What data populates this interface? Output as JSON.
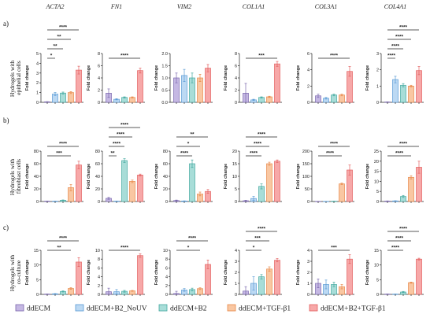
{
  "columns": [
    "ACTA2",
    "FN1",
    "VIM2",
    "COL1A1",
    "COL3A1",
    "COL4A1"
  ],
  "rows": [
    {
      "panel": "a)",
      "label": [
        "Hydrogels with",
        "epithelial cells"
      ]
    },
    {
      "panel": "b)",
      "label": [
        "Hydrogels with",
        "fibroblast cells"
      ]
    },
    {
      "panel": "c)",
      "label": [
        "Hydrogels with",
        "co-culture"
      ]
    }
  ],
  "legend": {
    "placement": "bottom",
    "items": [
      {
        "label": "ddECM",
        "fill": "#c5b8e3",
        "stroke": "#7b68ae"
      },
      {
        "label": "ddECM+B2_NoUV",
        "fill": "#bcd9f3",
        "stroke": "#5a9bd5"
      },
      {
        "label": "ddECM+B2",
        "fill": "#a8ddd8",
        "stroke": "#44a9a0"
      },
      {
        "label": "ddECM+TGF-β1",
        "fill": "#f9c7a2",
        "stroke": "#e8894a"
      },
      {
        "label": "ddECM+B2+TGF-β1",
        "fill": "#f7a8a8",
        "stroke": "#e36060"
      }
    ]
  },
  "chart_data": [
    {
      "type": "bar",
      "ylabel": "Fold change",
      "grid": false,
      "ylim": [
        0,
        5
      ],
      "yticks": [
        "0",
        "1",
        "2",
        "3",
        "4",
        "5"
      ],
      "values": [
        0.05,
        0.85,
        0.95,
        1.0,
        3.3
      ],
      "errors": [
        0.02,
        0.15,
        0.1,
        0.1,
        0.4
      ],
      "significance": [
        {
          "from": 0,
          "to": 4,
          "label": "****"
        },
        {
          "from": 0,
          "to": 3,
          "label": "**"
        },
        {
          "from": 0,
          "to": 2,
          "label": "**"
        },
        {
          "from": 0,
          "to": 1,
          "label": "*"
        }
      ]
    },
    {
      "type": "bar",
      "ylabel": "Fold change",
      "grid": false,
      "ylim": [
        0,
        8
      ],
      "yticks": [
        "0",
        "2",
        "4",
        "6",
        "8"
      ],
      "values": [
        1.5,
        0.5,
        0.8,
        0.8,
        5.2
      ],
      "errors": [
        0.7,
        0.1,
        0.1,
        0.1,
        0.4
      ],
      "significance": [
        {
          "from": 0,
          "to": 4,
          "label": "****"
        }
      ]
    },
    {
      "type": "bar",
      "ylabel": "Fold change",
      "grid": false,
      "ylim": [
        0,
        2
      ],
      "yticks": [
        "0.0",
        "0.5",
        "1.0",
        "1.5",
        "2.0"
      ],
      "values": [
        1.0,
        1.1,
        1.0,
        1.0,
        1.4
      ],
      "errors": [
        0.2,
        0.25,
        0.2,
        0.15,
        0.15
      ],
      "significance": []
    },
    {
      "type": "bar",
      "ylabel": "Fold change",
      "grid": false,
      "ylim": [
        0,
        8
      ],
      "yticks": [
        "0",
        "2",
        "4",
        "6",
        "8"
      ],
      "values": [
        1.5,
        0.4,
        0.8,
        0.9,
        6.3
      ],
      "errors": [
        1.6,
        0.1,
        0.1,
        0.1,
        0.4
      ],
      "significance": [
        {
          "from": 0,
          "to": 4,
          "label": "***"
        }
      ]
    },
    {
      "type": "bar",
      "ylabel": "Fold change",
      "grid": false,
      "ylim": [
        0,
        6
      ],
      "yticks": [
        "0",
        "2",
        "4",
        "6"
      ],
      "values": [
        0.8,
        0.5,
        0.9,
        0.9,
        3.8
      ],
      "errors": [
        0.2,
        0.1,
        0.1,
        0.1,
        0.6
      ],
      "significance": [
        {
          "from": 0,
          "to": 4,
          "label": "****"
        }
      ]
    },
    {
      "type": "bar",
      "ylabel": "Fold change",
      "grid": false,
      "ylim": [
        0,
        3
      ],
      "yticks": [
        "0",
        "1",
        "2",
        "3"
      ],
      "values": [
        0.02,
        1.4,
        1.05,
        1.0,
        1.95
      ],
      "errors": [
        0.01,
        0.2,
        0.1,
        0.05,
        0.25
      ],
      "significance": [
        {
          "from": 0,
          "to": 4,
          "label": "****"
        },
        {
          "from": 0,
          "to": 3,
          "label": "****"
        },
        {
          "from": 0,
          "to": 2,
          "label": "****"
        },
        {
          "from": 0,
          "to": 1,
          "label": "****"
        }
      ]
    },
    {
      "type": "bar",
      "ylabel": "Fold change",
      "grid": false,
      "ylim": [
        0,
        80
      ],
      "yticks": [
        "0",
        "20",
        "40",
        "60",
        "80"
      ],
      "values": [
        0.5,
        0.5,
        2,
        22,
        58
      ],
      "errors": [
        0.2,
        0.2,
        0.5,
        5,
        6
      ],
      "significance": [
        {
          "from": 0,
          "to": 4,
          "label": "****"
        },
        {
          "from": 0,
          "to": 3,
          "label": "***"
        }
      ]
    },
    {
      "type": "bar",
      "ylabel": "Fold change",
      "grid": false,
      "ylim": [
        0,
        80
      ],
      "yticks": [
        "0",
        "20",
        "40",
        "60",
        "80"
      ],
      "values": [
        5,
        0.5,
        65,
        32,
        42
      ],
      "errors": [
        1.5,
        0.2,
        3,
        2,
        1.5
      ],
      "significance": [
        {
          "from": 0,
          "to": 4,
          "label": "****"
        },
        {
          "from": 0,
          "to": 3,
          "label": "****"
        },
        {
          "from": 0,
          "to": 2,
          "label": "****"
        },
        {
          "from": 0,
          "to": 1,
          "label": "**"
        }
      ]
    },
    {
      "type": "bar",
      "ylabel": "Fold change",
      "grid": false,
      "ylim": [
        0,
        80
      ],
      "yticks": [
        "0",
        "20",
        "40",
        "60",
        "80"
      ],
      "values": [
        1.5,
        0.8,
        60,
        12,
        16
      ],
      "errors": [
        0.8,
        0.3,
        6,
        3,
        3
      ],
      "significance": [
        {
          "from": 0,
          "to": 4,
          "label": "**"
        },
        {
          "from": 0,
          "to": 3,
          "label": "*"
        },
        {
          "from": 0,
          "to": 2,
          "label": "****"
        }
      ]
    },
    {
      "type": "bar",
      "ylabel": "Fold change",
      "grid": false,
      "ylim": [
        0,
        20
      ],
      "yticks": [
        "0",
        "5",
        "10",
        "15",
        "20"
      ],
      "values": [
        0.3,
        1.2,
        6,
        15,
        16
      ],
      "errors": [
        0.2,
        0.8,
        1,
        0.6,
        0.5
      ],
      "significance": [
        {
          "from": 0,
          "to": 4,
          "label": "****"
        },
        {
          "from": 0,
          "to": 3,
          "label": "****"
        },
        {
          "from": 0,
          "to": 2,
          "label": "****"
        }
      ]
    },
    {
      "type": "bar",
      "ylabel": "Fold change",
      "grid": false,
      "ylim": [
        0,
        200
      ],
      "yticks": [
        "0",
        "50",
        "100",
        "150",
        "200"
      ],
      "values": [
        0.5,
        0.5,
        1,
        70,
        125
      ],
      "errors": [
        0.2,
        0.2,
        0.3,
        3,
        20
      ],
      "significance": [
        {
          "from": 0,
          "to": 4,
          "label": "****"
        },
        {
          "from": 0,
          "to": 3,
          "label": "****"
        }
      ]
    },
    {
      "type": "bar",
      "ylabel": "Fold change",
      "grid": false,
      "ylim": [
        0,
        25
      ],
      "yticks": [
        "0",
        "5",
        "10",
        "15",
        "20",
        "25"
      ],
      "values": [
        0.2,
        0.3,
        2.5,
        12,
        17
      ],
      "errors": [
        0.1,
        0.1,
        0.5,
        0.8,
        3
      ],
      "significance": [
        {
          "from": 0,
          "to": 4,
          "label": "****"
        },
        {
          "from": 0,
          "to": 3,
          "label": "****"
        }
      ]
    },
    {
      "type": "bar",
      "ylabel": "Fold change",
      "grid": false,
      "ylim": [
        0,
        15
      ],
      "yticks": [
        "0",
        "5",
        "10",
        "15"
      ],
      "values": [
        0.1,
        0.2,
        1.0,
        2.0,
        11
      ],
      "errors": [
        0.05,
        0.1,
        0.2,
        0.3,
        1.5
      ],
      "significance": [
        {
          "from": 0,
          "to": 4,
          "label": "****"
        },
        {
          "from": 0,
          "to": 3,
          "label": "**"
        }
      ]
    },
    {
      "type": "bar",
      "ylabel": "Fold change",
      "grid": false,
      "ylim": [
        0,
        10
      ],
      "yticks": [
        "0",
        "2",
        "4",
        "6",
        "8",
        "10"
      ],
      "values": [
        0.6,
        0.6,
        0.7,
        0.8,
        8.8
      ],
      "errors": [
        0.8,
        0.5,
        0.2,
        0.1,
        0.4
      ],
      "significance": [
        {
          "from": 0,
          "to": 4,
          "label": "****"
        }
      ]
    },
    {
      "type": "bar",
      "ylabel": "Fold change",
      "grid": false,
      "ylim": [
        0,
        10
      ],
      "yticks": [
        "0",
        "2",
        "4",
        "6",
        "8",
        "10"
      ],
      "values": [
        0.2,
        1.0,
        1.1,
        1.3,
        6.8
      ],
      "errors": [
        0.5,
        0.3,
        0.3,
        0.2,
        1.0
      ],
      "significance": [
        {
          "from": 0,
          "to": 4,
          "label": "****"
        },
        {
          "from": 0,
          "to": 3,
          "label": "*"
        }
      ]
    },
    {
      "type": "bar",
      "ylabel": "Fold change",
      "grid": false,
      "ylim": [
        0,
        4
      ],
      "yticks": [
        "0",
        "1",
        "2",
        "3",
        "4"
      ],
      "values": [
        0.3,
        1.0,
        1.6,
        2.3,
        3.1
      ],
      "errors": [
        0.4,
        0.6,
        0.2,
        0.2,
        0.15
      ],
      "significance": [
        {
          "from": 0,
          "to": 4,
          "label": "****"
        },
        {
          "from": 0,
          "to": 3,
          "label": "***"
        },
        {
          "from": 0,
          "to": 2,
          "label": "*"
        }
      ]
    },
    {
      "type": "bar",
      "ylabel": "Fold change",
      "grid": false,
      "ylim": [
        0,
        4
      ],
      "yticks": [
        "0",
        "1",
        "2",
        "3",
        "4"
      ],
      "values": [
        1.0,
        0.9,
        0.9,
        0.7,
        3.2
      ],
      "errors": [
        0.4,
        0.4,
        0.2,
        0.2,
        0.4
      ],
      "significance": [
        {
          "from": 0,
          "to": 4,
          "label": "***"
        }
      ]
    },
    {
      "type": "bar",
      "ylabel": "Fold change",
      "grid": false,
      "ylim": [
        0,
        15
      ],
      "yticks": [
        "0",
        "5",
        "10",
        "15"
      ],
      "values": [
        0.1,
        0.1,
        0.8,
        4.0,
        12
      ],
      "errors": [
        0.05,
        0.05,
        0.2,
        0.2,
        0.3
      ],
      "significance": [
        {
          "from": 0,
          "to": 4,
          "label": "****"
        },
        {
          "from": 0,
          "to": 3,
          "label": "****"
        },
        {
          "from": 0,
          "to": 2,
          "label": "****"
        }
      ]
    }
  ]
}
